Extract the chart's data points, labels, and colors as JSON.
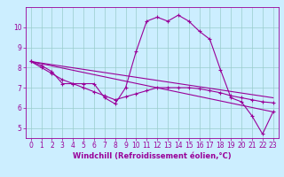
{
  "background_color": "#cceeff",
  "line_color": "#990099",
  "marker": "+",
  "markersize": 3,
  "linewidth": 0.8,
  "xlim": [
    -0.5,
    23.5
  ],
  "ylim": [
    4.5,
    11.0
  ],
  "yticks": [
    5,
    6,
    7,
    8,
    9,
    10
  ],
  "xticks": [
    0,
    1,
    2,
    3,
    4,
    5,
    6,
    7,
    8,
    9,
    10,
    11,
    12,
    13,
    14,
    15,
    16,
    17,
    18,
    19,
    20,
    21,
    22,
    23
  ],
  "xlabel": "Windchill (Refroidissement éolien,°C)",
  "xlabel_fontsize": 6,
  "tick_fontsize": 5.5,
  "grid_color": "#99cccc",
  "series": [
    {
      "x": [
        0,
        1,
        2,
        3,
        4,
        5,
        6,
        7,
        8,
        9,
        10,
        11,
        12,
        13,
        14,
        15,
        16,
        17,
        18,
        19,
        20,
        21,
        22,
        23
      ],
      "y": [
        8.3,
        8.1,
        7.8,
        7.2,
        7.2,
        7.2,
        7.2,
        6.5,
        6.2,
        7.0,
        8.8,
        10.3,
        10.5,
        10.3,
        10.6,
        10.3,
        9.8,
        9.4,
        7.9,
        6.5,
        6.3,
        5.6,
        4.7,
        5.8
      ],
      "has_markers": true
    },
    {
      "x": [
        0,
        1,
        2,
        3,
        4,
        5,
        6,
        7,
        8,
        9,
        10,
        11,
        12,
        13,
        14,
        15,
        16,
        17,
        18,
        19,
        20,
        21,
        22,
        23
      ],
      "y": [
        8.3,
        8.0,
        7.7,
        7.4,
        7.2,
        7.0,
        6.8,
        6.6,
        6.4,
        6.55,
        6.7,
        6.85,
        7.0,
        7.0,
        7.0,
        7.0,
        6.95,
        6.85,
        6.75,
        6.6,
        6.5,
        6.4,
        6.3,
        6.25
      ],
      "has_markers": true
    },
    {
      "x": [
        0,
        23
      ],
      "y": [
        8.3,
        6.5
      ],
      "has_markers": false
    },
    {
      "x": [
        0,
        23
      ],
      "y": [
        8.3,
        5.8
      ],
      "has_markers": false
    }
  ]
}
